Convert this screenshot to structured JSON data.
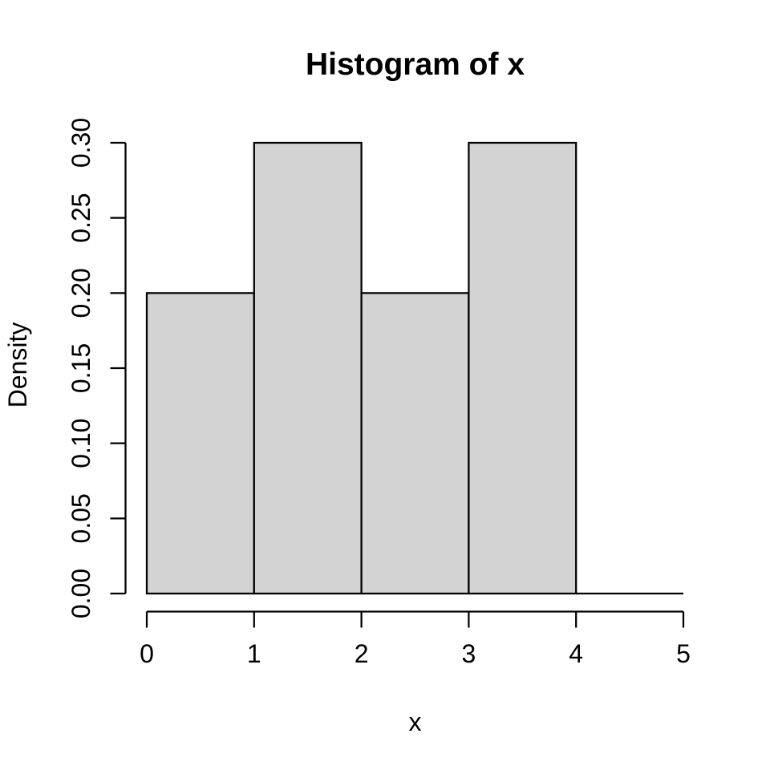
{
  "chart_data": {
    "type": "bar",
    "variant": "histogram",
    "title": "Histogram of x",
    "xlabel": "x",
    "ylabel": "Density",
    "breaks": [
      0,
      1,
      2,
      3,
      4,
      5
    ],
    "densities": [
      0.2,
      0.3,
      0.2,
      0.3,
      0.0
    ],
    "x_tick_labels": [
      "0",
      "1",
      "2",
      "3",
      "4",
      "5"
    ],
    "x_tick_values": [
      0,
      1,
      2,
      3,
      4,
      5
    ],
    "y_tick_labels": [
      "0.00",
      "0.05",
      "0.10",
      "0.15",
      "0.20",
      "0.25",
      "0.30"
    ],
    "y_tick_values": [
      0,
      0.05,
      0.1,
      0.15,
      0.2,
      0.25,
      0.3
    ],
    "xlim": [
      0,
      5
    ],
    "ylim": [
      0,
      0.3
    ],
    "grid": false,
    "legend": false,
    "colors": {
      "bar_fill": "#d3d3d3",
      "bar_stroke": "#000000",
      "axis": "#000000",
      "text": "#000000",
      "background": "#ffffff"
    }
  }
}
